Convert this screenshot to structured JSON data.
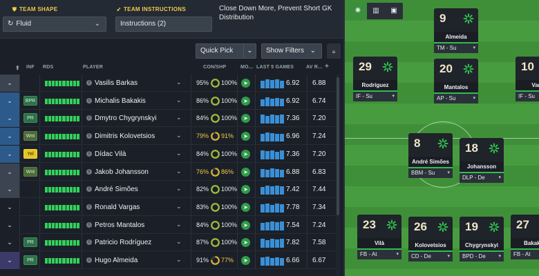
{
  "topbar": {
    "team_shape_label": "TEAM SHAPE",
    "team_shape_value": "Fluid",
    "team_instructions_label": "TEAM INSTRUCTIONS",
    "team_instructions_value": "Instructions (2)",
    "instructions_text": "Close Down More, Prevent Short GK Distribution"
  },
  "toolbar": {
    "quick_pick": "Quick Pick",
    "show_filters": "Show Filters"
  },
  "columns": {
    "inf": "INF",
    "rds": "RDS",
    "player": "PLAYER",
    "conshp": "CON/SHP",
    "morale": "MO...",
    "last5": "LAST 5 GAMES",
    "avr": "AV R..."
  },
  "players": [
    {
      "name": "Vasilis Barkas",
      "inf": "",
      "stripe": "#3b4450",
      "con": "95%",
      "con_frac": 0.95,
      "shp": "100%",
      "last5_frac": [
        0.8,
        0.9,
        0.85,
        0.9,
        0.8
      ],
      "last_game": "6.92",
      "avr": "6.88"
    },
    {
      "name": "Michalis Bakakis",
      "inf": "BPR",
      "stripe": "#2c5a8a",
      "con": "86%",
      "con_frac": 0.86,
      "shp": "100%",
      "last5_frac": [
        0.7,
        0.9,
        0.8,
        0.85,
        0.8
      ],
      "last_game": "6.92",
      "avr": "6.74"
    },
    {
      "name": "Dmytro Chygrynskyi",
      "inf": "PR",
      "stripe": "#2c5a8a",
      "con": "84%",
      "con_frac": 0.84,
      "shp": "100%",
      "last5_frac": [
        0.9,
        0.8,
        0.9,
        0.85,
        0.9
      ],
      "last_game": "7.36",
      "avr": "7.20"
    },
    {
      "name": "Dimitris Kolovetsios",
      "inf": "Wnt",
      "stripe": "#2c5a8a",
      "con": "79%",
      "con_frac": 0.79,
      "shp": "91%",
      "last5_frac": [
        0.8,
        0.9,
        0.85,
        0.8,
        0.75
      ],
      "last_game": "6.96",
      "avr": "7.24"
    },
    {
      "name": "Dídac Vilà",
      "inf": "Yel",
      "stripe": "#2c5a8a",
      "con": "84%",
      "con_frac": 0.84,
      "shp": "100%",
      "last5_frac": [
        0.9,
        0.85,
        0.9,
        0.8,
        0.9
      ],
      "last_game": "7.36",
      "avr": "7.20"
    },
    {
      "name": "Jakob Johansson",
      "inf": "Wnt",
      "stripe": "#3b4450",
      "con": "76%",
      "con_frac": 0.76,
      "shp": "86%",
      "last5_frac": [
        0.85,
        0.8,
        0.9,
        0.85,
        0.8
      ],
      "last_game": "6.88",
      "avr": "6.83"
    },
    {
      "name": "André Simões",
      "inf": "",
      "stripe": "#3b4450",
      "con": "82%",
      "con_frac": 0.82,
      "shp": "100%",
      "last5_frac": [
        0.8,
        0.9,
        0.85,
        0.9,
        0.85
      ],
      "last_game": "7.42",
      "avr": "7.44"
    },
    {
      "name": "Ronald Vargas",
      "inf": "",
      "stripe": "#1b2028",
      "con": "83%",
      "con_frac": 0.83,
      "shp": "100%",
      "last5_frac": [
        0.85,
        0.9,
        0.8,
        0.9,
        0.85
      ],
      "last_game": "7.78",
      "avr": "7.34"
    },
    {
      "name": "Petros Mantalos",
      "inf": "",
      "stripe": "#1b2028",
      "con": "84%",
      "con_frac": 0.84,
      "shp": "100%",
      "last5_frac": [
        0.8,
        0.85,
        0.9,
        0.85,
        0.9
      ],
      "last_game": "7.54",
      "avr": "7.24"
    },
    {
      "name": "Patricio Rodríguez",
      "inf": "PR",
      "stripe": "#1b2028",
      "con": "87%",
      "con_frac": 0.87,
      "shp": "100%",
      "last5_frac": [
        0.9,
        0.8,
        0.9,
        0.85,
        0.9
      ],
      "last_game": "7.82",
      "avr": "7.58"
    },
    {
      "name": "Hugo Almeida",
      "inf": "PR",
      "stripe": "#3b3a6a",
      "con": "91%",
      "con_frac": 0.91,
      "shp": "77%",
      "last5_frac": [
        0.85,
        0.9,
        0.8,
        0.85,
        0.8
      ],
      "last_game": "6.66",
      "avr": "6.67"
    }
  ],
  "pitch_cards": [
    {
      "number": "9",
      "name": "Almeida",
      "role": "TM - Su",
      "cond": 1.0
    },
    {
      "number": "29",
      "name": "Rodríguez",
      "role": "IF - Su",
      "cond": 1.0
    },
    {
      "number": "20",
      "name": "Mantalos",
      "role": "AP - Su",
      "cond": 1.0
    },
    {
      "number": "10",
      "name": "Varg",
      "role": "IF - Su",
      "cond": 1.0
    },
    {
      "number": "8",
      "name": "André Simões",
      "role": "BBM - Su",
      "cond": 1.0
    },
    {
      "number": "18",
      "name": "Johansson",
      "role": "DLP - De",
      "cond": 1.0
    },
    {
      "number": "23",
      "name": "Vilà",
      "role": "FB - At",
      "cond": 1.0
    },
    {
      "number": "26",
      "name": "Kolovetsios",
      "role": "CD - De",
      "cond": 1.0
    },
    {
      "number": "19",
      "name": "Chygrynskyi",
      "role": "BPD - De",
      "cond": 1.0
    },
    {
      "number": "27",
      "name": "Bakaki",
      "role": "FB - At",
      "cond": 1.0
    }
  ],
  "colors": {
    "accent_yellow": "#f2c94c",
    "rds_green": "#33d15a",
    "last5_blue": "#3a8fd6",
    "cond_green": "#2fbf4e",
    "sharp_yellow": "#d6b13a"
  },
  "icons": {
    "team_shape": "shield-icon",
    "team_instructions": "whistle-icon",
    "shape_dropdown": "cycle-icon",
    "lock": "lock-icon",
    "info": "info-icon",
    "morale": "arrow-icon",
    "view_pitch": "pitch-icon",
    "view_stats": "bar-chart-icon",
    "view_kit": "shirt-icon"
  }
}
